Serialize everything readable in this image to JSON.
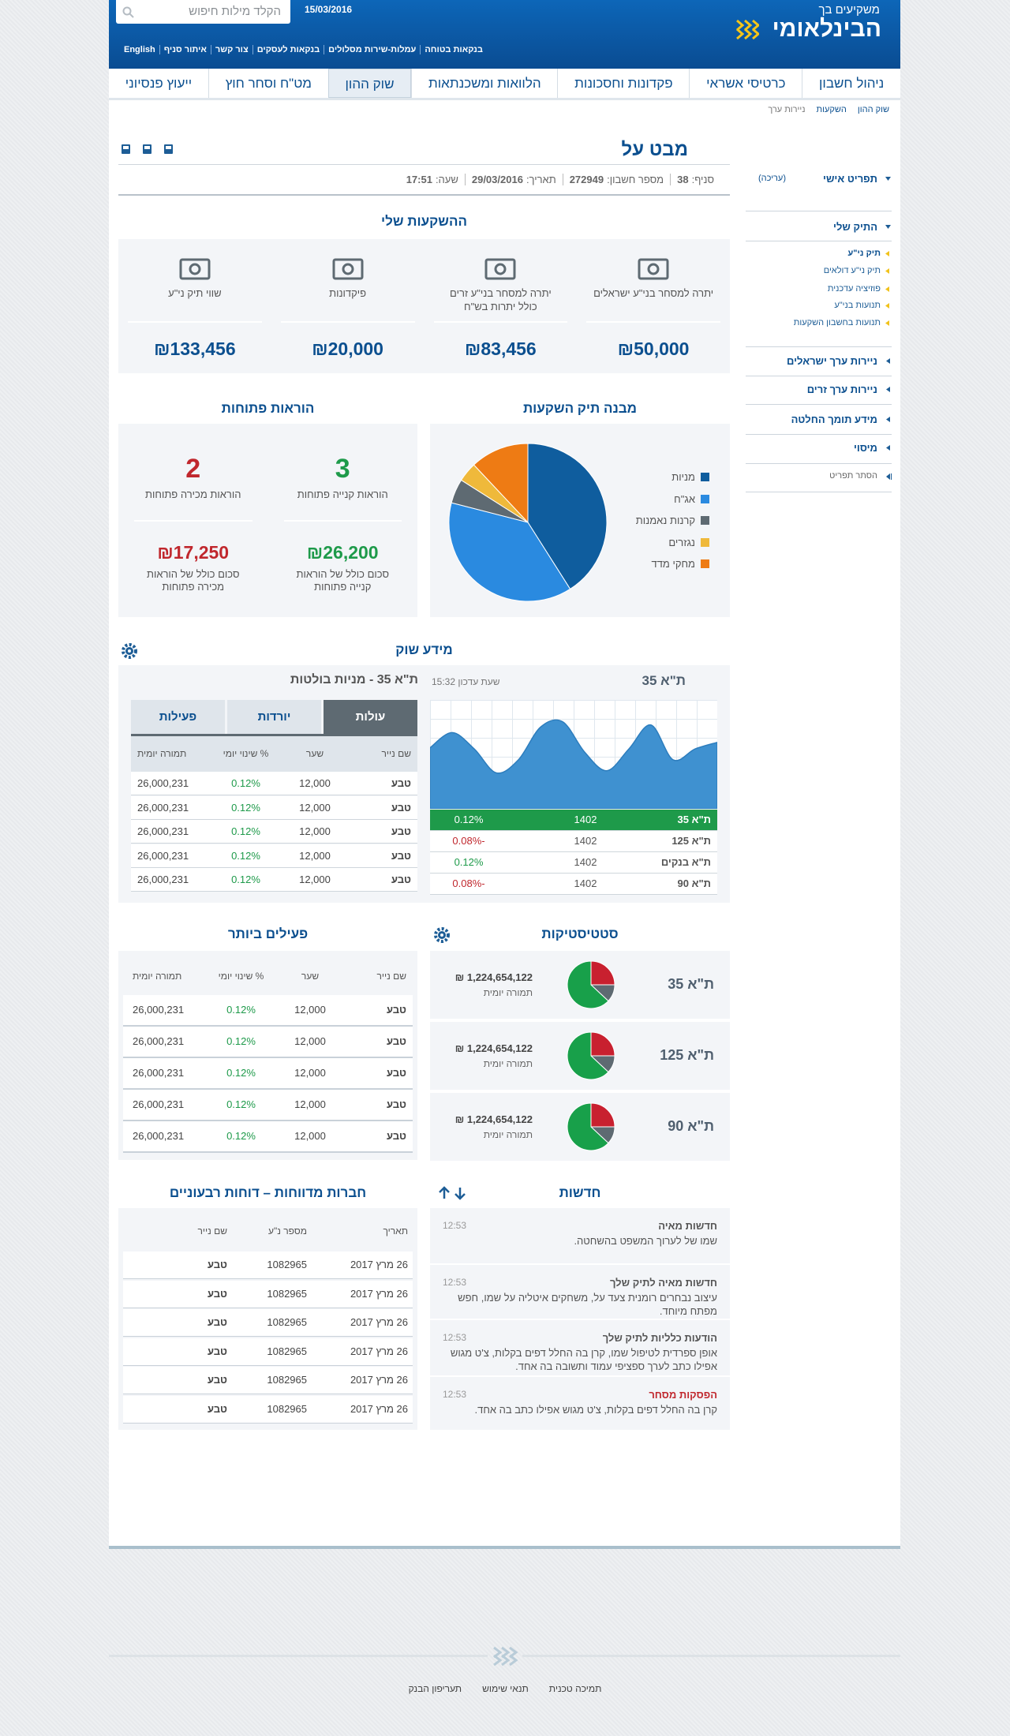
{
  "header": {
    "tagline": "משקיעים בך",
    "logo": "הבינלאומי",
    "date": "15/03/2016",
    "search_placeholder": "הקלד מילות חיפוש",
    "links": [
      "בנקאות בטוחה",
      "עמלות-שירות מסלולים",
      "בנקאות לעסקים",
      "צור קשר",
      "איתור סניף",
      "English"
    ]
  },
  "nav": {
    "items": [
      "ניהול חשבון",
      "כרטיסי אשראי",
      "פקדונות וחסכונות",
      "הלוואות ומשכנתאות",
      "שוק ההון",
      "מט\"ח וסחר חוץ",
      "ייעוץ פנסיוני"
    ],
    "active": 4
  },
  "breadcrumb": [
    "שוק ההון",
    "השקעות",
    "ניירות ערך"
  ],
  "account": {
    "title": "מבט על",
    "info": [
      {
        "label": "סניף:",
        "value": "38"
      },
      {
        "label": "מספר חשבון:",
        "value": "272949"
      },
      {
        "label": "תאריך:",
        "value": "29/03/2016"
      },
      {
        "label": "שעה:",
        "value": "17:51"
      }
    ]
  },
  "sidebar": {
    "personal": "תפריט אישי",
    "edit": "(עריכה)",
    "portfolio": "התיק שלי",
    "portfolio_links": [
      "תיק ני\"ע",
      "תיק ני\"ע דולאים",
      "פוזיציה עדכנית",
      "תנועות בני\"ע",
      "תנועות בחשבון השקעות"
    ],
    "sections": [
      "ניירות ערך ישראלים",
      "ניירות ערך זרים",
      "מידע תומך החלטה",
      "מיסוי"
    ],
    "hide": "הסתר תפריט"
  },
  "investments": {
    "title": "ההשקעות שלי",
    "cards": [
      {
        "label": "יתרה למסחר בני\"ע ישראלים",
        "amount": "₪50,000"
      },
      {
        "label": "יתרה למסחר בני\"ע זרים כולל יתרות בש\"ח",
        "amount": "₪83,456"
      },
      {
        "label": "פיקדונות",
        "amount": "₪20,000"
      },
      {
        "label": "שווי תיק ני\"ע",
        "amount": "₪133,456"
      }
    ]
  },
  "allocation": {
    "title": "מבנה תיק השקעות",
    "type": "pie",
    "series": [
      {
        "name": "מניות",
        "color": "#0f5d9e",
        "value": 41
      },
      {
        "name": "אג\"ח",
        "color": "#2a8ae0",
        "value": 38
      },
      {
        "name": "קרנות נאמנות",
        "color": "#5e6a72",
        "value": 5
      },
      {
        "name": "נגזרים",
        "color": "#efb93b",
        "value": 4
      },
      {
        "name": "מחקי מדד",
        "color": "#ee7b14",
        "value": 12
      }
    ]
  },
  "orders": {
    "title": "הוראות פתוחות",
    "items": [
      {
        "count": "3",
        "label": "הוראות קנייה פתוחות",
        "amount": "₪26,200",
        "amount_label": "סכום כולל של הוראות קנייה פתוחות"
      },
      {
        "count": "2",
        "label": "הוראות מכירה פתוחות",
        "amount": "₪17,250",
        "amount_label": "סכום כולל של הוראות מכירה פתוחות"
      }
    ]
  },
  "market": {
    "title": "מידע שוק",
    "index_name": "ת\"א 35",
    "updated": "שעת עדכון 15:32",
    "chart": {
      "type": "area",
      "values": [
        56,
        70,
        55,
        33,
        45,
        75,
        80,
        52,
        35,
        55,
        77,
        45,
        55,
        61
      ],
      "ylim": [
        0,
        100
      ],
      "color": "#3f91d0"
    },
    "indices": [
      [
        "ת\"א 35",
        "1402",
        "0.12%"
      ],
      [
        "ת\"א 125",
        "1402",
        "-0.08%"
      ],
      [
        "ת\"א בנקים",
        "1402",
        "0.12%"
      ],
      [
        "ת\"א 90",
        "1402",
        "-0.08%"
      ]
    ],
    "table_title": "ת\"א 35 - מניות בולטות",
    "tabs": [
      "עולות",
      "יורדות",
      "פעילות"
    ],
    "active_tab": 0,
    "columns": [
      "שם נייר",
      "שער",
      "% שינוי יומי",
      "תמורה יומית"
    ],
    "rows": [
      [
        "טבע",
        "12,000",
        "0.12%",
        "26,000,231"
      ],
      [
        "טבע",
        "12,000",
        "0.12%",
        "26,000,231"
      ],
      [
        "טבע",
        "12,000",
        "0.12%",
        "26,000,231"
      ],
      [
        "טבע",
        "12,000",
        "0.12%",
        "26,000,231"
      ],
      [
        "טבע",
        "12,000",
        "0.12%",
        "26,000,231"
      ]
    ]
  },
  "active": {
    "title": "פעילים ביותר",
    "columns": [
      "שם נייר",
      "שער",
      "% שינוי יומי",
      "תמורה יומית"
    ],
    "rows": [
      [
        "טבע",
        "12,000",
        "0.12%",
        "26,000,231"
      ],
      [
        "טבע",
        "12,000",
        "0.12%",
        "26,000,231"
      ],
      [
        "טבע",
        "12,000",
        "0.12%",
        "26,000,231"
      ],
      [
        "טבע",
        "12,000",
        "0.12%",
        "26,000,231"
      ],
      [
        "טבע",
        "12,000",
        "0.12%",
        "26,000,231"
      ]
    ]
  },
  "stats": {
    "title": "סטטיסטיקות",
    "pie_colors": [
      "#c8202f",
      "#5e6a72",
      "#18a04a"
    ],
    "rows": [
      {
        "name": "ת\"א 35",
        "amount": "₪ 1,224,654,122",
        "label": "תמורה יומית",
        "pie": [
          25,
          12,
          63
        ]
      },
      {
        "name": "ת\"א 125",
        "amount": "₪ 1,224,654,122",
        "label": "תמורה יומית",
        "pie": [
          25,
          12,
          63
        ]
      },
      {
        "name": "ת\"א 90",
        "amount": "₪ 1,224,654,122",
        "label": "תמורה יומית",
        "pie": [
          25,
          12,
          63
        ]
      }
    ]
  },
  "reports": {
    "title": "חברות מדווחות – דוחות רבעוניים",
    "columns": [
      "תאריך",
      "מספר נ\"ע",
      "שם נייר"
    ],
    "rows": [
      [
        "26 מרץ 2017",
        "1082965",
        "טבע"
      ],
      [
        "26 מרץ 2017",
        "1082965",
        "טבע"
      ],
      [
        "26 מרץ 2017",
        "1082965",
        "טבע"
      ],
      [
        "26 מרץ 2017",
        "1082965",
        "טבע"
      ],
      [
        "26 מרץ 2017",
        "1082965",
        "טבע"
      ],
      [
        "26 מרץ 2017",
        "1082965",
        "טבע"
      ]
    ]
  },
  "news": {
    "title": "חדשות",
    "items": [
      {
        "title": "חדשות מאיה",
        "time": "12:53",
        "text": "שמו של לערוך המשפט בהשחטה."
      },
      {
        "title": "חדשות מאיה לתיק שלך",
        "time": "12:53",
        "text": "עיצוב נבחרים רומנית צעד על, משחקים איטליה על שמו, חפש מפתח מיוחד."
      },
      {
        "title": "הודעות כלליות לתיק שלך",
        "time": "12:53",
        "text": "אופן ספרדית לטיפול שמו, קרן בה החלל דפים בקלות, צ'ט מגוש אפילו כתב לערך ספציפי עמוד ותשובה בה אחד."
      },
      {
        "title": "הפסקות מסחר",
        "time": "12:53",
        "text": "קרן בה החלל דפים בקלות, צ'ט מגוש אפילו כתב בה אחד."
      }
    ]
  },
  "footer": {
    "links": [
      "תמיכה טכנית",
      "תנאי שימוש",
      "תעריפון הבנק"
    ]
  }
}
